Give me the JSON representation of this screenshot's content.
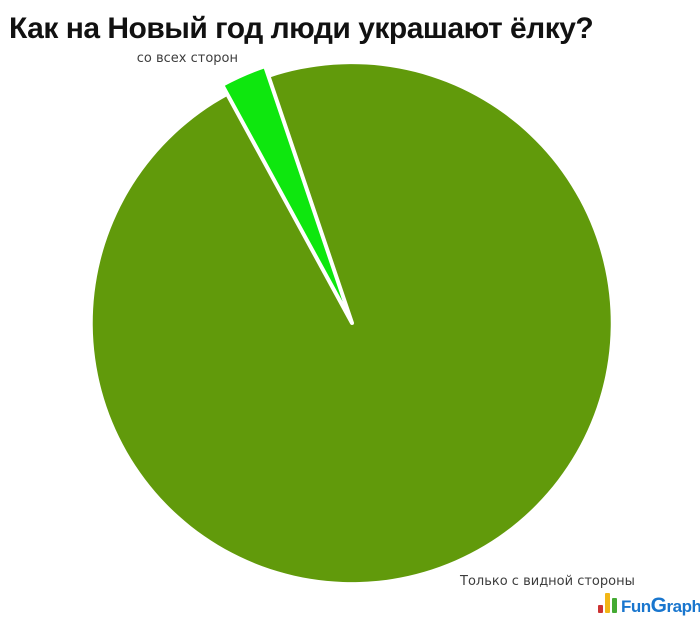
{
  "chart_data": {
    "type": "pie",
    "title": "Как на Новый год люди украшают ёлку?",
    "background": "#ffffff",
    "legend_position": "none",
    "rotation_deg_from_12": 331.4,
    "slice_outline_color": "#ffffff",
    "labels_color": "#3d3d3d",
    "slices": [
      {
        "label": "со всех сторон",
        "pct": 2.75,
        "color": "#0ee70e",
        "exploded": true
      },
      {
        "label": "Только с видной стороны",
        "pct": 97.25,
        "color": "#619a0b",
        "exploded": false
      }
    ]
  },
  "logo": {
    "wordmark_part1": "Fun",
    "wordmark_part2": "G",
    "wordmark_part3": "raph",
    "text_color": "#1976ce",
    "icon_bar_colors": [
      "#cc3333",
      "#f2b616",
      "#44aa33"
    ]
  }
}
